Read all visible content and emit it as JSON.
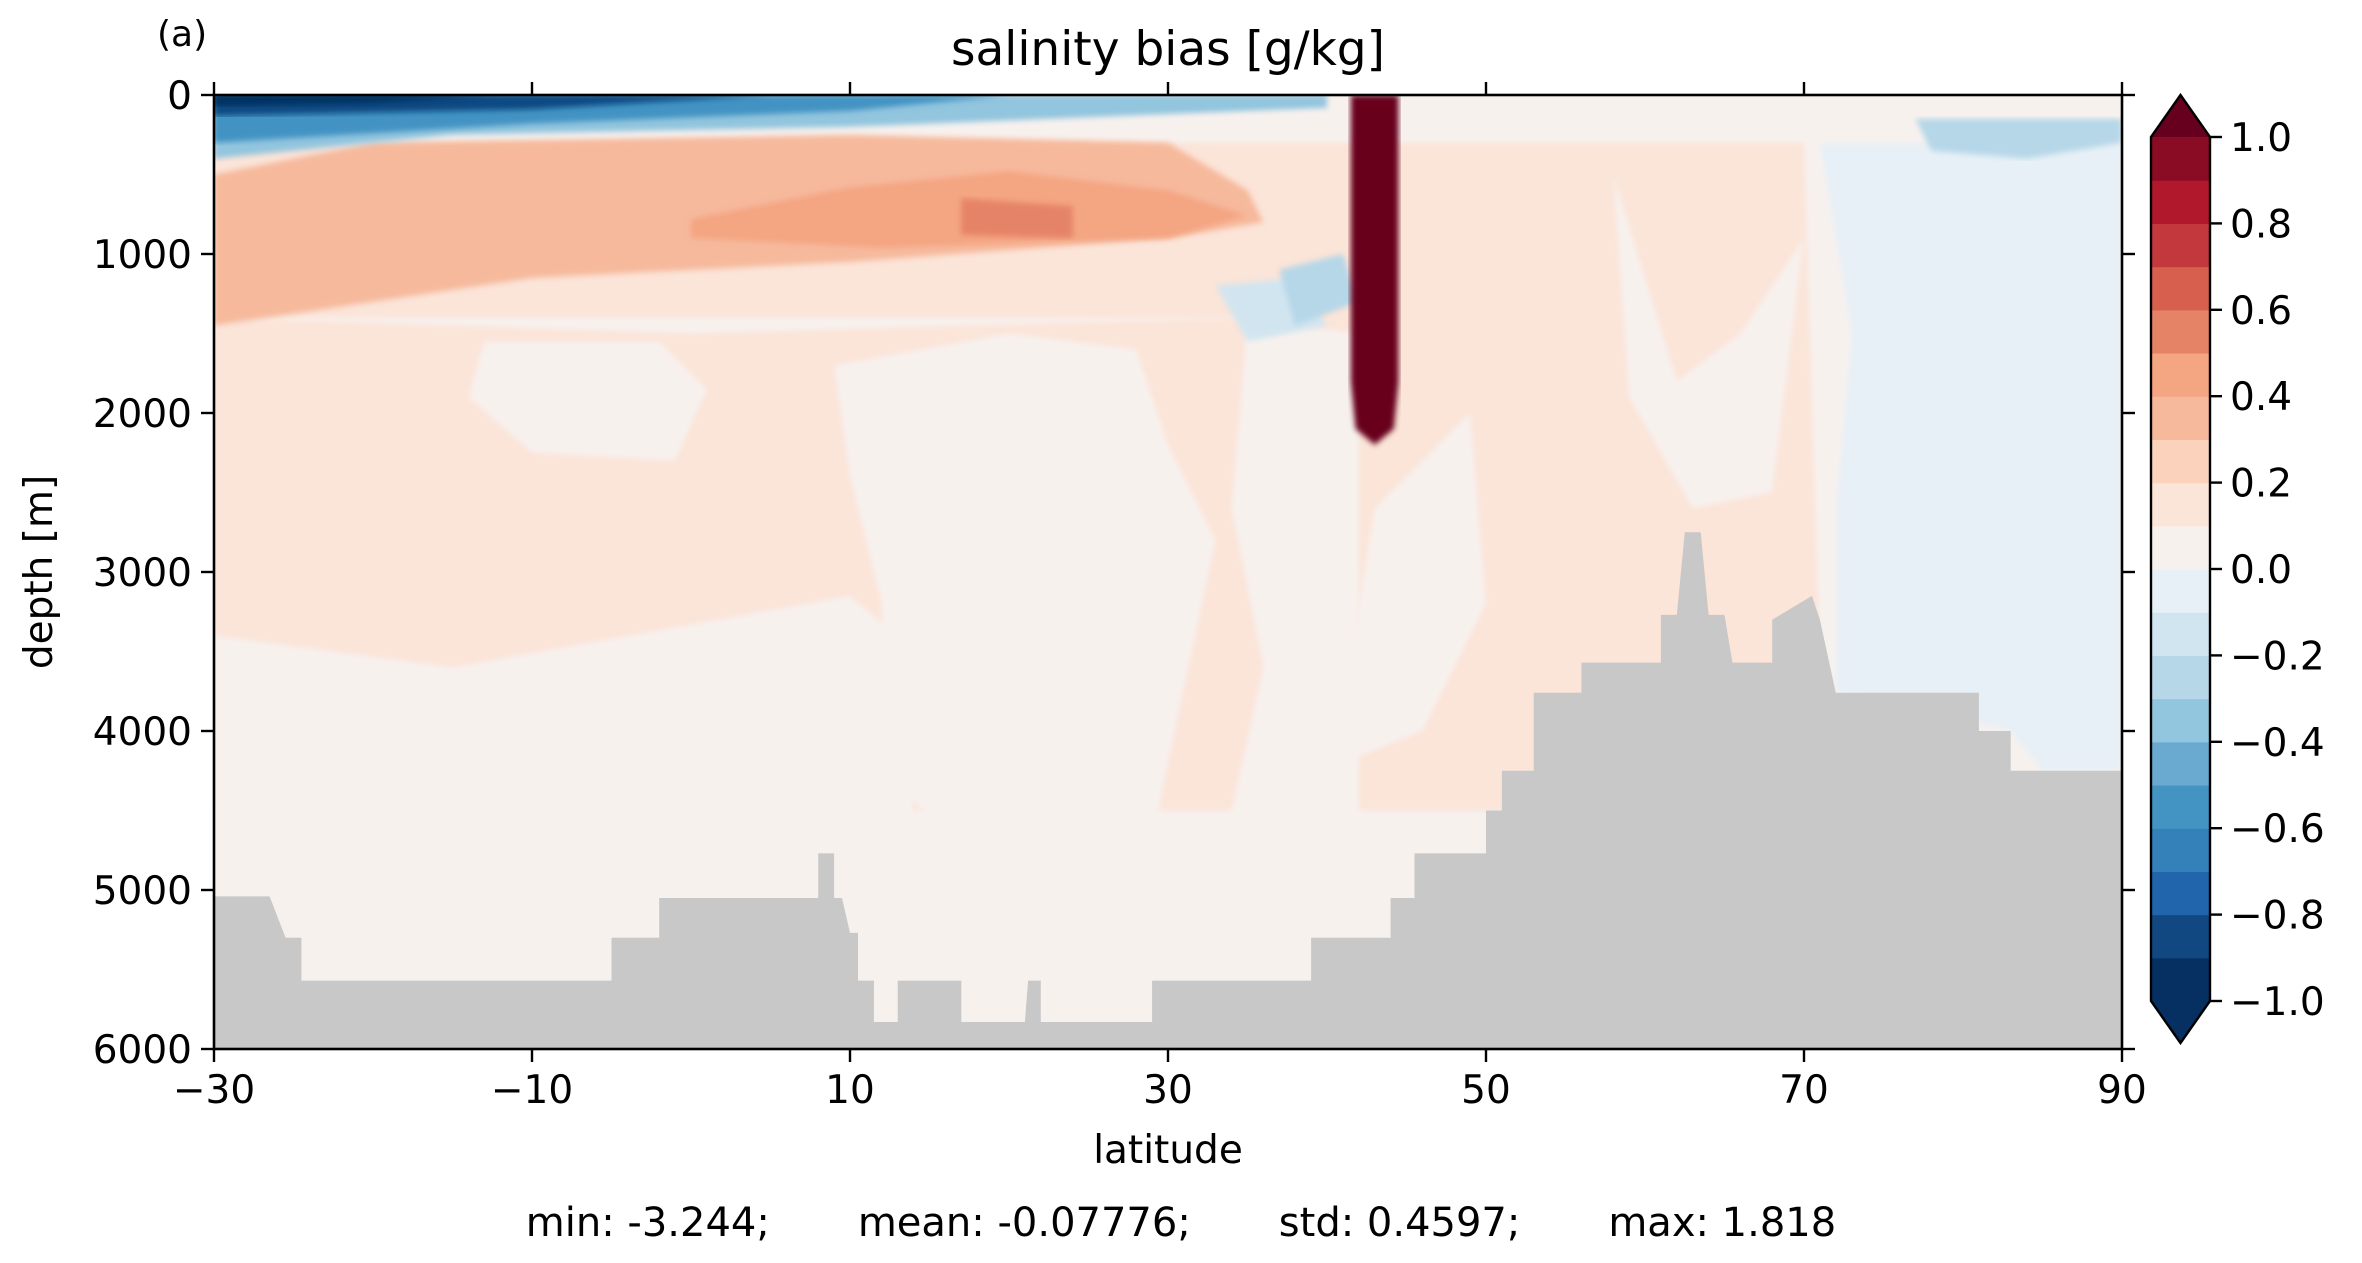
{
  "chart_data": {
    "type": "heatmap",
    "panel_label": "(a)",
    "title": "salinity bias [g/kg]",
    "xlabel": "latitude",
    "ylabel": "depth [m]",
    "xlim": [
      -30,
      90
    ],
    "ylim": [
      6000,
      0
    ],
    "x_ticks": [
      -30,
      -10,
      10,
      30,
      50,
      70,
      90
    ],
    "x_tick_labels": [
      "−30",
      "−10",
      "10",
      "30",
      "50",
      "70",
      "90"
    ],
    "y_ticks": [
      0,
      1000,
      2000,
      3000,
      4000,
      5000,
      6000
    ],
    "y_tick_labels": [
      "0",
      "1000",
      "2000",
      "3000",
      "4000",
      "5000",
      "6000"
    ],
    "colormap": "RdBu_r",
    "colorbar": {
      "range": [
        -1.0,
        1.0
      ],
      "extend": "both",
      "levels": 20,
      "ticks": [
        1.0,
        0.8,
        0.6,
        0.4,
        0.2,
        0.0,
        -0.2,
        -0.4,
        -0.6,
        -0.8,
        -1.0
      ],
      "tick_labels": [
        "1.0",
        "0.8",
        "0.6",
        "0.4",
        "0.2",
        "0.0",
        "−0.2",
        "−0.4",
        "−0.6",
        "−0.8",
        "−1.0"
      ],
      "colors": [
        "#053061",
        "#114882",
        "#2166ac",
        "#3480b9",
        "#4393c3",
        "#6aaad0",
        "#92c5de",
        "#b6d7e8",
        "#d1e5f0",
        "#e7f0f6",
        "#f7f1ee",
        "#fbe4d8",
        "#fbd2bc",
        "#f6b99c",
        "#f4a582",
        "#e58367",
        "#d6604d",
        "#c2383c",
        "#b2182b",
        "#8a0b24"
      ],
      "over_color": "#67001f",
      "under_color": "#053061"
    },
    "land_color": "#c8c8c8",
    "regions": [
      {
        "name": "deep-ocean-bias",
        "value": 0.15,
        "points": [
          [
            -30,
            1400
          ],
          [
            0,
            1500
          ],
          [
            35,
            1400
          ],
          [
            42,
            300
          ],
          [
            70,
            300
          ],
          [
            71,
            3600
          ],
          [
            72,
            4500
          ],
          [
            -30,
            4500
          ]
        ]
      },
      {
        "name": "upper-slight-positive",
        "value": 0.15,
        "points": [
          [
            -30,
            300
          ],
          [
            42,
            300
          ],
          [
            42,
            1400
          ],
          [
            -30,
            1400
          ]
        ]
      },
      {
        "name": "intermediate-salty-band",
        "value": 0.3,
        "points": [
          [
            -30,
            500
          ],
          [
            -20,
            300
          ],
          [
            10,
            250
          ],
          [
            30,
            300
          ],
          [
            35,
            600
          ],
          [
            36,
            800
          ],
          [
            30,
            900
          ],
          [
            10,
            1050
          ],
          [
            -10,
            1150
          ],
          [
            -30,
            1450
          ]
        ]
      },
      {
        "name": "intermediate-salty-core",
        "value": 0.45,
        "points": [
          [
            0,
            780
          ],
          [
            10,
            580
          ],
          [
            20,
            480
          ],
          [
            30,
            600
          ],
          [
            35,
            760
          ],
          [
            30,
            900
          ],
          [
            12,
            960
          ],
          [
            0,
            900
          ]
        ]
      },
      {
        "name": "intermediate-salty-peak",
        "value": 0.55,
        "points": [
          [
            17,
            650
          ],
          [
            24,
            700
          ],
          [
            24,
            900
          ],
          [
            17,
            880
          ]
        ]
      },
      {
        "name": "near-zero-patch-south",
        "value": 0.03,
        "points": [
          [
            -13,
            1550
          ],
          [
            -2,
            1550
          ],
          [
            1,
            1850
          ],
          [
            -1,
            2300
          ],
          [
            -10,
            2250
          ],
          [
            -14,
            1900
          ]
        ]
      },
      {
        "name": "near-zero-patch-deep",
        "value": 0.03,
        "points": [
          [
            -30,
            3400
          ],
          [
            -15,
            3600
          ],
          [
            10,
            3150
          ],
          [
            13,
            3400
          ],
          [
            14,
            4500
          ],
          [
            10,
            5000
          ],
          [
            -28,
            5000
          ],
          [
            -30,
            4800
          ]
        ]
      },
      {
        "name": "near-zero-column",
        "value": 0.03,
        "points": [
          [
            9,
            1700
          ],
          [
            20,
            1500
          ],
          [
            28,
            1600
          ],
          [
            30,
            2200
          ],
          [
            33,
            2800
          ],
          [
            30,
            4200
          ],
          [
            28,
            5200
          ],
          [
            24,
            5700
          ],
          [
            20,
            5600
          ],
          [
            17,
            4800
          ],
          [
            12,
            4200
          ],
          [
            12,
            3200
          ],
          [
            10,
            2400
          ]
        ]
      },
      {
        "name": "near-zero-column-2",
        "value": 0.03,
        "points": [
          [
            35,
            1400
          ],
          [
            42,
            1500
          ],
          [
            42,
            5300
          ],
          [
            36,
            5300
          ],
          [
            34,
            4500
          ],
          [
            36,
            3600
          ],
          [
            34,
            2600
          ]
        ]
      },
      {
        "name": "near-zero-column-3",
        "value": 0.03,
        "points": [
          [
            43,
            2600
          ],
          [
            49,
            2000
          ],
          [
            50,
            3200
          ],
          [
            46,
            4000
          ],
          [
            41,
            4200
          ],
          [
            42,
            3200
          ]
        ]
      },
      {
        "name": "near-zero-column-4",
        "value": 0.03,
        "points": [
          [
            58,
            500
          ],
          [
            62,
            1800
          ],
          [
            66,
            1500
          ],
          [
            70,
            900
          ],
          [
            68,
            2500
          ],
          [
            63,
            2600
          ],
          [
            59,
            1900
          ]
        ]
      },
      {
        "name": "arctic-fresh-basin",
        "value": -0.04,
        "points": [
          [
            71,
            300
          ],
          [
            90,
            300
          ],
          [
            90,
            4250
          ],
          [
            85,
            4250
          ],
          [
            83,
            4000
          ],
          [
            72,
            3750
          ],
          [
            72,
            2600
          ],
          [
            73,
            1500
          ]
        ]
      },
      {
        "name": "arctic-fresh-surface",
        "value": -0.25,
        "points": [
          [
            77,
            150
          ],
          [
            90,
            150
          ],
          [
            90,
            300
          ],
          [
            84,
            400
          ],
          [
            78,
            350
          ]
        ]
      },
      {
        "name": "southern-fresh-surface-1",
        "value": -0.3,
        "points": [
          [
            -30,
            0
          ],
          [
            40,
            0
          ],
          [
            40,
            80
          ],
          [
            10,
            200
          ],
          [
            -15,
            250
          ],
          [
            -30,
            400
          ]
        ]
      },
      {
        "name": "southern-fresh-surface-2",
        "value": -0.55,
        "points": [
          [
            -30,
            0
          ],
          [
            20,
            0
          ],
          [
            10,
            100
          ],
          [
            -10,
            180
          ],
          [
            -30,
            300
          ]
        ]
      },
      {
        "name": "southern-fresh-surface-3",
        "value": -0.8,
        "points": [
          [
            -30,
            0
          ],
          [
            5,
            0
          ],
          [
            -10,
            90
          ],
          [
            -30,
            130
          ]
        ]
      },
      {
        "name": "southern-fresh-surface-4",
        "value": -1.05,
        "points": [
          [
            -30,
            0
          ],
          [
            -12,
            0
          ],
          [
            -20,
            50
          ],
          [
            -30,
            70
          ]
        ]
      },
      {
        "name": "fresh-patch-mid",
        "value": -0.15,
        "points": [
          [
            33,
            1200
          ],
          [
            38,
            1150
          ],
          [
            40,
            1450
          ],
          [
            35,
            1550
          ]
        ]
      },
      {
        "name": "fresh-patch-mid-2",
        "value": -0.25,
        "points": [
          [
            37,
            1100
          ],
          [
            41,
            1000
          ],
          [
            42,
            1300
          ],
          [
            38,
            1450
          ]
        ]
      },
      {
        "name": "high-salinity-plume",
        "value": 1.2,
        "points": [
          [
            41.5,
            0
          ],
          [
            44.5,
            0
          ],
          [
            44.5,
            1800
          ],
          [
            44.2,
            2100
          ],
          [
            43,
            2200
          ],
          [
            41.8,
            2100
          ],
          [
            41.5,
            1800
          ]
        ]
      }
    ],
    "bathymetry": [
      [
        -30,
        5040
      ],
      [
        -26.5,
        5040
      ],
      [
        -25.5,
        5300
      ],
      [
        -24.5,
        5300
      ],
      [
        -24.5,
        5570
      ],
      [
        -5,
        5570
      ],
      [
        -5,
        5300
      ],
      [
        -2,
        5300
      ],
      [
        -2,
        5050
      ],
      [
        8,
        5050
      ],
      [
        8,
        4770
      ],
      [
        9,
        4770
      ],
      [
        9,
        5050
      ],
      [
        9.5,
        5050
      ],
      [
        10,
        5270
      ],
      [
        10.5,
        5270
      ],
      [
        10.5,
        5570
      ],
      [
        11.5,
        5570
      ],
      [
        11.5,
        5830
      ],
      [
        13,
        5830
      ],
      [
        13,
        5570
      ],
      [
        17,
        5570
      ],
      [
        17,
        5830
      ],
      [
        21,
        5830
      ],
      [
        21.2,
        5570
      ],
      [
        22,
        5570
      ],
      [
        22,
        5830
      ],
      [
        29,
        5830
      ],
      [
        29,
        5570
      ],
      [
        39,
        5570
      ],
      [
        39,
        5300
      ],
      [
        44,
        5300
      ],
      [
        44,
        5050
      ],
      [
        45.5,
        5050
      ],
      [
        45.5,
        4770
      ],
      [
        50,
        4770
      ],
      [
        50,
        4500
      ],
      [
        51,
        4500
      ],
      [
        51,
        4250
      ],
      [
        53,
        4250
      ],
      [
        53,
        3760
      ],
      [
        56,
        3760
      ],
      [
        56,
        3570
      ],
      [
        61,
        3570
      ],
      [
        61,
        3270
      ],
      [
        62,
        3270
      ],
      [
        62.5,
        2750
      ],
      [
        63.5,
        2750
      ],
      [
        64,
        3270
      ],
      [
        65,
        3270
      ],
      [
        65.5,
        3570
      ],
      [
        68,
        3570
      ],
      [
        68,
        3300
      ],
      [
        70.5,
        3150
      ],
      [
        71,
        3300
      ],
      [
        72,
        3760
      ],
      [
        81,
        3760
      ],
      [
        81,
        4000
      ],
      [
        83,
        4000
      ],
      [
        83,
        4250
      ],
      [
        90,
        4250
      ],
      [
        90,
        6000
      ],
      [
        -30,
        6000
      ]
    ]
  },
  "stats": {
    "min": "min: -3.244;",
    "mean": "mean: -0.07776;",
    "std": "std: 0.4597;",
    "max": "max: 1.818"
  }
}
